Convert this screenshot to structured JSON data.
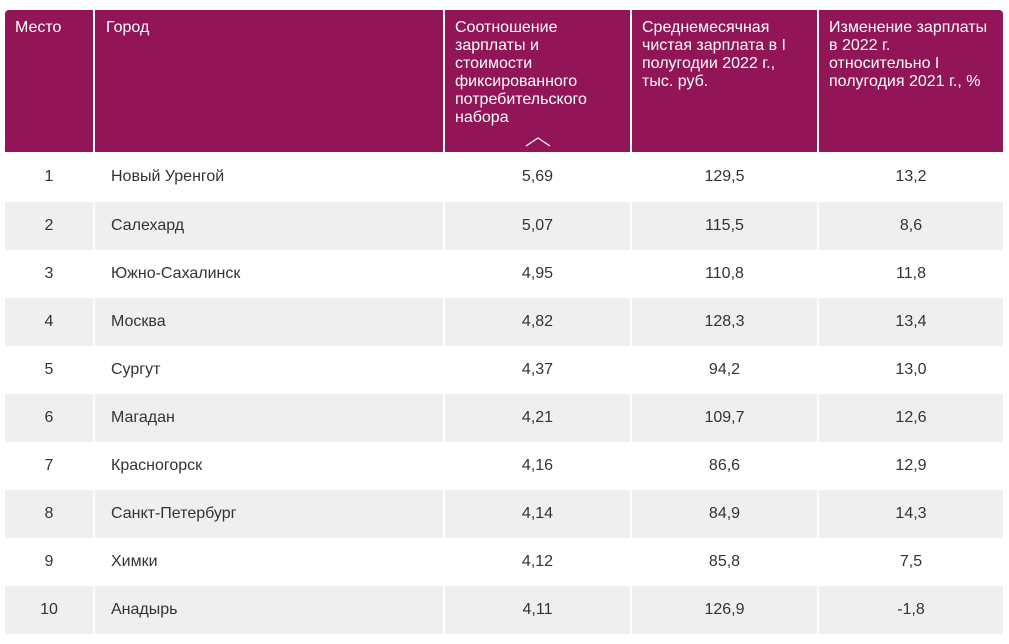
{
  "header": {
    "place": "Место",
    "city": "Город",
    "ratio": "Соотношение зарплаты и стоимости фиксированного потребительского набора",
    "salary": "Среднемесячная чистая зарплата в I полугодии 2022 г., тыс. руб.",
    "change": "Изменение зарплаты в 2022 г. относительно I полугодия 2021 г., %"
  },
  "sort_icon": "sort-ascending-chevron-icon",
  "rows": [
    {
      "place": "1",
      "city": "Новый Уренгой",
      "ratio": "5,69",
      "salary": "129,5",
      "change": "13,2"
    },
    {
      "place": "2",
      "city": "Салехард",
      "ratio": "5,07",
      "salary": "115,5",
      "change": "8,6"
    },
    {
      "place": "3",
      "city": "Южно-Сахалинск",
      "ratio": "4,95",
      "salary": "110,8",
      "change": "11,8"
    },
    {
      "place": "4",
      "city": "Москва",
      "ratio": "4,82",
      "salary": "128,3",
      "change": "13,4"
    },
    {
      "place": "5",
      "city": "Сургут",
      "ratio": "4,37",
      "salary": "94,2",
      "change": "13,0"
    },
    {
      "place": "6",
      "city": "Магадан",
      "ratio": "4,21",
      "salary": "109,7",
      "change": "12,6"
    },
    {
      "place": "7",
      "city": "Красногорск",
      "ratio": "4,16",
      "salary": "86,6",
      "change": "12,9"
    },
    {
      "place": "8",
      "city": "Санкт-Петербург",
      "ratio": "4,14",
      "salary": "84,9",
      "change": "14,3"
    },
    {
      "place": "9",
      "city": "Химки",
      "ratio": "4,12",
      "salary": "85,8",
      "change": "7,5"
    },
    {
      "place": "10",
      "city": "Анадырь",
      "ratio": "4,11",
      "salary": "126,9",
      "change": "-1,8"
    }
  ],
  "colors": {
    "header_bg": "#921657",
    "header_text": "#ffffff",
    "stripe": "#efefef",
    "cell_text": "#333333"
  }
}
